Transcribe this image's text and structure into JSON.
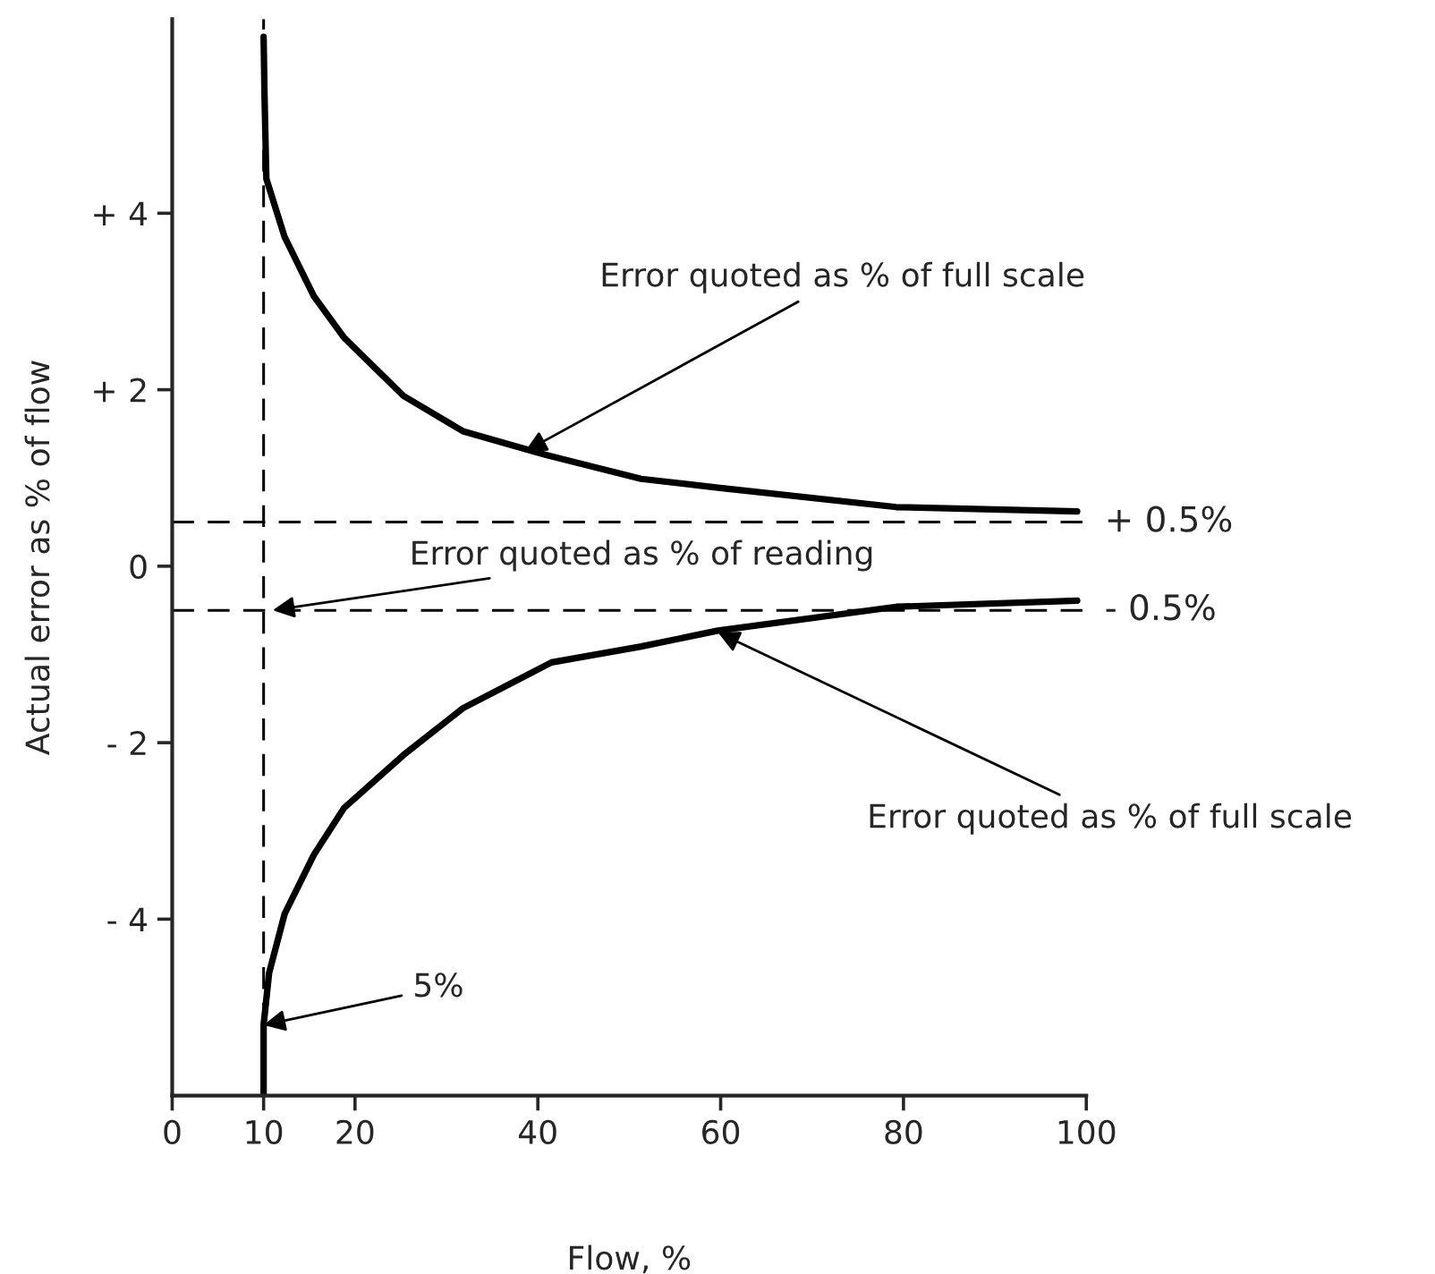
{
  "chart_data": {
    "type": "line",
    "xlabel": "Flow, %",
    "ylabel": "Actual error as % of flow",
    "xlim": [
      0,
      100
    ],
    "xticks": [
      0,
      10,
      20,
      40,
      60,
      80,
      100
    ],
    "ylim": [
      -6,
      6.2
    ],
    "yticks": [
      {
        "value": 4,
        "label": "+ 4"
      },
      {
        "value": 2,
        "label": "+ 2"
      },
      0,
      {
        "value": -2,
        "label": "- 2"
      },
      {
        "value": -4,
        "label": "- 4"
      }
    ],
    "grid": false,
    "legend": false,
    "marker": "none",
    "line_style": "solid",
    "series": [
      {
        "color": "#000000",
        "x": [
          10,
          10.1,
          10.3,
          12.3,
          15.5,
          18.8,
          25.3,
          31.8,
          40.9,
          51.3,
          59.7,
          79.2,
          99
        ],
        "values": [
          6.0,
          5.33,
          4.39,
          3.73,
          3.06,
          2.59,
          1.93,
          1.53,
          1.26,
          0.99,
          0.89,
          0.67,
          0.62
        ]
      },
      {
        "color": "#000000",
        "x": [
          10,
          10,
          10.6,
          12.3,
          15.5,
          18.8,
          25.3,
          31.8,
          41.5,
          51.3,
          59.7,
          79.2,
          99
        ],
        "values": [
          -6.0,
          -5.2,
          -4.61,
          -3.94,
          -3.27,
          -2.74,
          -2.14,
          -1.61,
          -1.09,
          -0.91,
          -0.73,
          -0.46,
          -0.39
        ]
      }
    ],
    "ref_lines": [
      {
        "axis": "y",
        "value": 0.5,
        "label": "+ 0.5%",
        "color": "#000000",
        "line_style": "dashed"
      },
      {
        "axis": "y",
        "value": -0.5,
        "label": "- 0.5%",
        "color": "#000000",
        "line_style": "dashed"
      },
      {
        "axis": "x",
        "value": 10,
        "color": "#000000",
        "line_style": "dashed"
      }
    ],
    "annotations": [
      {
        "text": "Error quoted as % of full scale",
        "x": 38.6,
        "y": 1.3
      },
      {
        "text": "Error quoted as % of reading",
        "x": 11,
        "y": -0.5
      },
      {
        "text": "Error quoted as % of full scale",
        "x": 59.7,
        "y": -0.75
      },
      {
        "text": "5%",
        "x": 10,
        "y": -5.2
      }
    ]
  }
}
